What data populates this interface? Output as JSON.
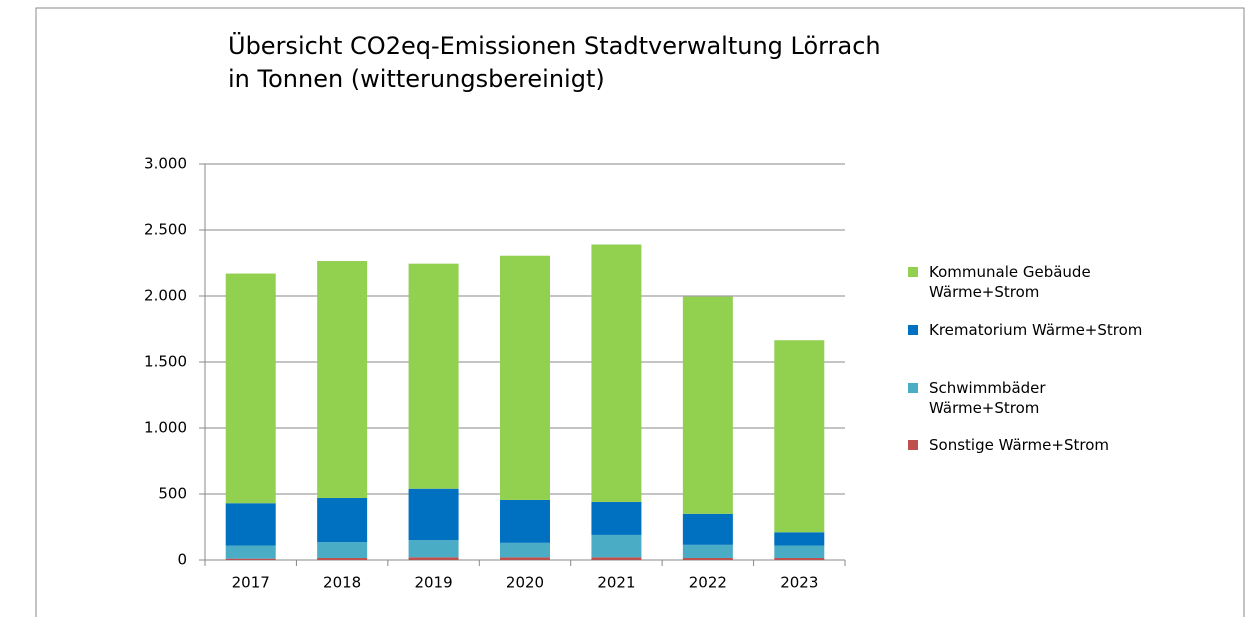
{
  "chart_data": {
    "type": "stacked_bar",
    "title": "Übersicht CO2eq-Emissionen Stadtverwaltung Lörrach",
    "subtitle": "in Tonnen (witterungsbereinigt)",
    "categories": [
      "2017",
      "2018",
      "2019",
      "2020",
      "2021",
      "2022",
      "2023"
    ],
    "series": [
      {
        "name": "Sonstige Wärme+Strom",
        "color": "#c0504d",
        "values": [
          10,
          15,
          20,
          20,
          20,
          15,
          15
        ]
      },
      {
        "name": "Schwimmbäder Wärme+Strom",
        "color": "#4bacc6",
        "values": [
          100,
          120,
          130,
          110,
          170,
          100,
          95
        ]
      },
      {
        "name": "Krematorium Wärme+Strom",
        "color": "#0070c0",
        "values": [
          320,
          335,
          390,
          325,
          250,
          235,
          100
        ]
      },
      {
        "name": "Kommunale Gebäude Wärme+Strom",
        "color": "#92d050",
        "values": [
          1740,
          1795,
          1705,
          1850,
          1950,
          1645,
          1455
        ]
      }
    ],
    "ylim": [
      0,
      3000
    ],
    "yticks": [
      0,
      500,
      {
        "value": 1000,
        "label": "1.000"
      },
      {
        "value": 1500,
        "label": "1.500"
      },
      {
        "value": 2000,
        "label": "2.000"
      },
      {
        "value": 2500,
        "label": "2.500"
      },
      {
        "value": 3000,
        "label": "3.000"
      }
    ],
    "grid": true,
    "legend": "right"
  }
}
